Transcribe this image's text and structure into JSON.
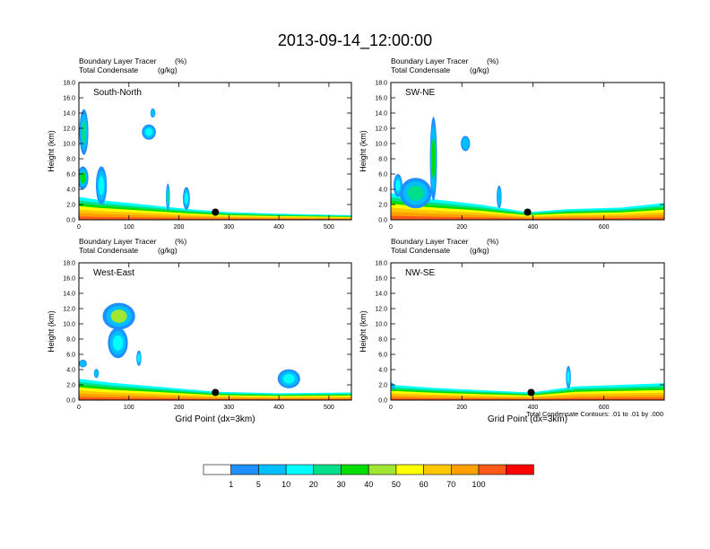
{
  "title": "2013-09-14_12:00:00",
  "colors": {
    "levels": [
      "#ffffff",
      "#1e90ff",
      "#00bfff",
      "#00ffff",
      "#00e08a",
      "#00dd00",
      "#a0e632",
      "#ffff00",
      "#ffc800",
      "#ffa000",
      "#ff5a1a",
      "#ff0000"
    ],
    "marker": "#000000",
    "contour": "#000000"
  },
  "colorbar": {
    "labels": [
      "1",
      "5",
      "10",
      "20",
      "30",
      "40",
      "50",
      "60",
      "70",
      "100"
    ]
  },
  "footnote": "Total Condensate Contours: .01 to .01 by .000",
  "chart_data": [
    {
      "type": "heatmap",
      "name": "South-North",
      "label_left_1": "Boundary Layer Tracer",
      "label_unit_1": "(%)",
      "label_left_2": "Total Condensate",
      "label_unit_2": "(g/kg)",
      "ylabel": "Height (km)",
      "xlabel": "",
      "xlim": [
        0,
        545
      ],
      "ylim": [
        0,
        18
      ],
      "xticks": [
        "0",
        "100",
        "200",
        "300",
        "400",
        "500"
      ],
      "xtick_values": [
        0,
        100,
        200,
        300,
        400,
        500
      ],
      "yticks": [
        "0.0",
        "2.0",
        "4.0",
        "6.0",
        "8.0",
        "10.0",
        "12.0",
        "14.0",
        "16.0",
        "18.0"
      ],
      "marker": {
        "x": 273,
        "y": 1.0
      },
      "layer_top": [
        [
          0,
          3.0
        ],
        [
          40,
          2.6
        ],
        [
          100,
          2.2
        ],
        [
          160,
          1.8
        ],
        [
          220,
          1.4
        ],
        [
          300,
          1.0
        ],
        [
          400,
          0.8
        ],
        [
          545,
          0.6
        ]
      ],
      "clouds": [
        {
          "x": 10,
          "y": 11.5,
          "w": 18,
          "h": 6,
          "v": 20
        },
        {
          "x": 8,
          "y": 5.5,
          "w": 22,
          "h": 3,
          "v": 30
        },
        {
          "x": 45,
          "y": 4.5,
          "w": 22,
          "h": 5,
          "v": 10
        },
        {
          "x": 140,
          "y": 11.5,
          "w": 28,
          "h": 2,
          "v": 10
        },
        {
          "x": 148,
          "y": 14.0,
          "w": 10,
          "h": 1.2,
          "v": 5
        },
        {
          "x": 178,
          "y": 3.0,
          "w": 8,
          "h": 3.5,
          "v": 20
        },
        {
          "x": 215,
          "y": 2.8,
          "w": 14,
          "h": 3,
          "v": 10
        }
      ]
    },
    {
      "type": "heatmap",
      "name": "SW-NE",
      "label_left_1": "Boundary Layer Tracer",
      "label_unit_1": "(%)",
      "label_left_2": "Total Condensate",
      "label_unit_2": "(g/kg)",
      "ylabel": "Height (km)",
      "xlabel": "",
      "xlim": [
        0,
        770
      ],
      "ylim": [
        0,
        18
      ],
      "xticks": [
        "0",
        "200",
        "400",
        "600"
      ],
      "xtick_values": [
        0,
        200,
        400,
        600
      ],
      "yticks": [
        "0.0",
        "2.0",
        "4.0",
        "6.0",
        "8.0",
        "10.0",
        "12.0",
        "14.0",
        "16.0",
        "18.0"
      ],
      "marker": {
        "x": 385,
        "y": 1.0
      },
      "layer_top": [
        [
          0,
          3.5
        ],
        [
          100,
          2.8
        ],
        [
          250,
          2.0
        ],
        [
          385,
          1.0
        ],
        [
          500,
          1.4
        ],
        [
          650,
          1.6
        ],
        [
          770,
          2.2
        ]
      ],
      "clouds": [
        {
          "x": 120,
          "y": 8.0,
          "w": 20,
          "h": 11,
          "v": 30
        },
        {
          "x": 70,
          "y": 3.5,
          "w": 90,
          "h": 4,
          "v": 20
        },
        {
          "x": 210,
          "y": 10.0,
          "w": 26,
          "h": 2,
          "v": 5
        },
        {
          "x": 305,
          "y": 3.0,
          "w": 14,
          "h": 3,
          "v": 5
        },
        {
          "x": 20,
          "y": 4.5,
          "w": 25,
          "h": 3,
          "v": 10
        }
      ]
    },
    {
      "type": "heatmap",
      "name": "West-East",
      "label_left_1": "Boundary Layer Tracer",
      "label_unit_1": "(%)",
      "label_left_2": "Total Condensate",
      "label_unit_2": "(g/kg)",
      "ylabel": "Height (km)",
      "xlabel": "Grid Point (dx=3km)",
      "xlim": [
        0,
        545
      ],
      "ylim": [
        0,
        18
      ],
      "xticks": [
        "0",
        "100",
        "200",
        "300",
        "400",
        "500"
      ],
      "xtick_values": [
        0,
        100,
        200,
        300,
        400,
        500
      ],
      "yticks": [
        "0.0",
        "2.0",
        "4.0",
        "6.0",
        "8.0",
        "10.0",
        "12.0",
        "14.0",
        "16.0",
        "18.0"
      ],
      "marker": {
        "x": 273,
        "y": 1.0
      },
      "layer_top": [
        [
          0,
          2.8
        ],
        [
          60,
          2.3
        ],
        [
          150,
          1.8
        ],
        [
          273,
          1.1
        ],
        [
          400,
          0.9
        ],
        [
          545,
          1.0
        ]
      ],
      "clouds": [
        {
          "x": 80,
          "y": 11.0,
          "w": 65,
          "h": 3.5,
          "v": 40
        },
        {
          "x": 78,
          "y": 7.5,
          "w": 40,
          "h": 4,
          "v": 10
        },
        {
          "x": 120,
          "y": 5.5,
          "w": 10,
          "h": 2,
          "v": 10
        },
        {
          "x": 420,
          "y": 2.8,
          "w": 45,
          "h": 2.5,
          "v": 10
        },
        {
          "x": 8,
          "y": 4.8,
          "w": 16,
          "h": 1,
          "v": 5
        },
        {
          "x": 35,
          "y": 3.5,
          "w": 10,
          "h": 1.2,
          "v": 5
        }
      ]
    },
    {
      "type": "heatmap",
      "name": "NW-SE",
      "label_left_1": "Boundary Layer Tracer",
      "label_unit_1": "(%)",
      "label_left_2": "Total Condensate",
      "label_unit_2": "(g/kg)",
      "ylabel": "Height (km)",
      "xlabel": "Grid Point (dx=3km)",
      "xlim": [
        0,
        770
      ],
      "ylim": [
        0,
        18
      ],
      "xticks": [
        "0",
        "200",
        "400",
        "600"
      ],
      "xtick_values": [
        0,
        200,
        400,
        600
      ],
      "yticks": [
        "0.0",
        "2.0",
        "4.0",
        "6.0",
        "8.0",
        "10.0",
        "12.0",
        "14.0",
        "16.0",
        "18.0"
      ],
      "marker": {
        "x": 395,
        "y": 1.0
      },
      "layer_top": [
        [
          0,
          2.0
        ],
        [
          120,
          1.6
        ],
        [
          250,
          1.3
        ],
        [
          395,
          1.0
        ],
        [
          520,
          1.8
        ],
        [
          650,
          2.0
        ],
        [
          770,
          2.2
        ]
      ],
      "clouds": [
        {
          "x": 500,
          "y": 3.0,
          "w": 14,
          "h": 3,
          "v": 10
        },
        {
          "x": 0,
          "y": 1.8,
          "w": 20,
          "h": 1,
          "v": 5
        }
      ]
    }
  ]
}
